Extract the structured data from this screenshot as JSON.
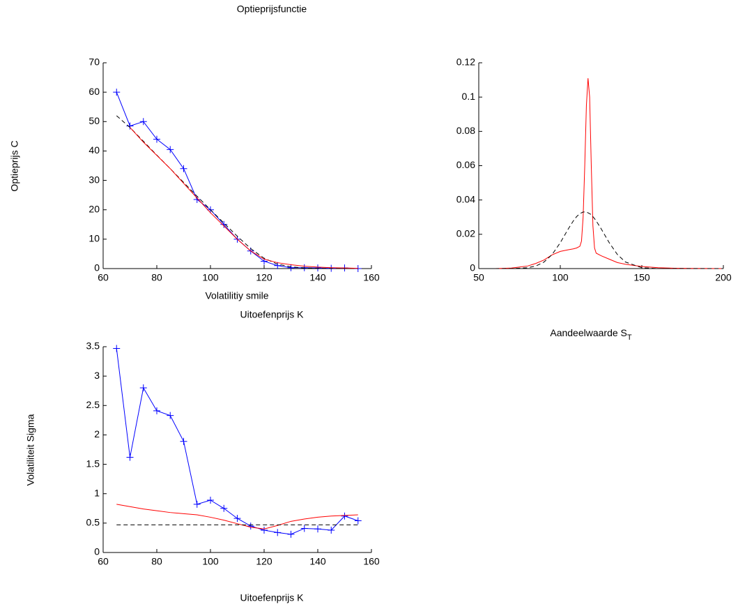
{
  "chart_data": [
    {
      "type": "line",
      "title": "Optieprijsfunctie",
      "ylabel": "Optieprijs C",
      "xlabel": "Uitoefenprijs K",
      "x": [
        65,
        70,
        75,
        80,
        85,
        90,
        95,
        100,
        105,
        110,
        115,
        120,
        125,
        130,
        135,
        140,
        145,
        150,
        155
      ],
      "series": [
        {
          "color": "#0000ff",
          "marker": "+",
          "dash": false,
          "values": [
            60,
            48.5,
            50,
            44,
            40.5,
            34,
            23.5,
            20,
            15,
            10,
            6,
            2.5,
            1,
            0.3,
            0.3,
            0.2,
            0.1,
            0.2,
            0
          ]
        },
        {
          "color": "#000000",
          "marker": null,
          "dash": true,
          "values": [
            52,
            48,
            43.3,
            38.6,
            34,
            29.3,
            24.6,
            20,
            15.5,
            11,
            6.8,
            3.5,
            1.5,
            0.6,
            0.2,
            0.1,
            0,
            0,
            0
          ]
        },
        {
          "color": "#ff0000",
          "marker": null,
          "dash": false,
          "values": [
            null,
            48,
            43,
            38.5,
            34,
            29,
            24,
            19,
            14.5,
            10,
            6,
            3.2,
            2,
            1.3,
            0.8,
            0.5,
            0.3,
            0.2,
            0.1
          ]
        }
      ],
      "xlim": [
        60,
        160
      ],
      "xticks": [
        60,
        80,
        100,
        120,
        140,
        160
      ],
      "ylim": [
        0,
        70
      ],
      "yticks": [
        0,
        10,
        20,
        30,
        40,
        50,
        60,
        70
      ]
    },
    {
      "type": "line",
      "xlabel": {
        "text": "Aandeelwaarde S",
        "subscript": "T"
      },
      "x": [
        60,
        70,
        80,
        85,
        90,
        95,
        100,
        105,
        108,
        110,
        112,
        113,
        114,
        115,
        116,
        117,
        118,
        119,
        120,
        121,
        122,
        125,
        130,
        135,
        140,
        150,
        160,
        170,
        180,
        200
      ],
      "series": [
        {
          "color": "#ff0000",
          "marker": null,
          "dash": false,
          "values": [
            0,
            0.0003,
            0.0015,
            0.003,
            0.005,
            0.008,
            0.01,
            0.011,
            0.0115,
            0.012,
            0.013,
            0.016,
            0.03,
            0.06,
            0.095,
            0.111,
            0.1,
            0.06,
            0.025,
            0.012,
            0.009,
            0.0075,
            0.0055,
            0.0035,
            0.0025,
            0.0012,
            0.0005,
            0.0002,
            0.0001,
            0
          ]
        },
        {
          "color": "#000000",
          "marker": null,
          "dash": true,
          "values": [
            0,
            0,
            0.0005,
            0.0015,
            0.0038,
            0.0082,
            0.0151,
            0.0233,
            0.0278,
            0.0303,
            0.032,
            0.0325,
            0.033,
            0.033,
            0.033,
            0.0325,
            0.032,
            0.0315,
            0.0303,
            0.0291,
            0.0278,
            0.0233,
            0.0151,
            0.0082,
            0.0038,
            0.0005,
            0,
            0,
            0,
            0
          ]
        }
      ],
      "xlim": [
        50,
        200
      ],
      "xticks": [
        50,
        100,
        150,
        200
      ],
      "ylim": [
        0,
        0.12
      ],
      "yticks": [
        0,
        0.02,
        0.04,
        0.06,
        0.08,
        0.1,
        0.12
      ]
    },
    {
      "type": "line",
      "title": "Volatilitiy smile",
      "ylabel": "Volatiliteit Sigma",
      "xlabel": "Uitoefenprijs K",
      "x": [
        65,
        70,
        75,
        80,
        85,
        90,
        95,
        100,
        105,
        110,
        115,
        120,
        125,
        130,
        135,
        140,
        145,
        150,
        155
      ],
      "series": [
        {
          "color": "#0000ff",
          "marker": "+",
          "dash": false,
          "values": [
            3.47,
            1.62,
            2.8,
            2.41,
            2.33,
            1.89,
            0.82,
            0.89,
            0.75,
            0.58,
            0.45,
            0.38,
            0.34,
            0.31,
            0.41,
            0.4,
            0.38,
            0.62,
            0.54
          ]
        },
        {
          "color": "#ff0000",
          "marker": null,
          "dash": false,
          "values": [
            0.82,
            0.78,
            0.74,
            0.71,
            0.68,
            0.66,
            0.64,
            0.6,
            0.55,
            0.49,
            0.43,
            0.4,
            0.46,
            0.53,
            0.57,
            0.6,
            0.62,
            0.63,
            0.64
          ]
        },
        {
          "color": "#000000",
          "marker": null,
          "dash": true,
          "values": [
            0.47,
            0.47,
            0.47,
            0.47,
            0.47,
            0.47,
            0.47,
            0.47,
            0.47,
            0.47,
            0.47,
            0.47,
            0.47,
            0.47,
            0.47,
            0.47,
            0.47,
            0.47,
            0.47
          ]
        }
      ],
      "xlim": [
        60,
        160
      ],
      "xticks": [
        60,
        80,
        100,
        120,
        140,
        160
      ],
      "ylim": [
        0,
        3.5
      ],
      "yticks": [
        0,
        0.5,
        1,
        1.5,
        2,
        2.5,
        3,
        3.5
      ]
    }
  ]
}
